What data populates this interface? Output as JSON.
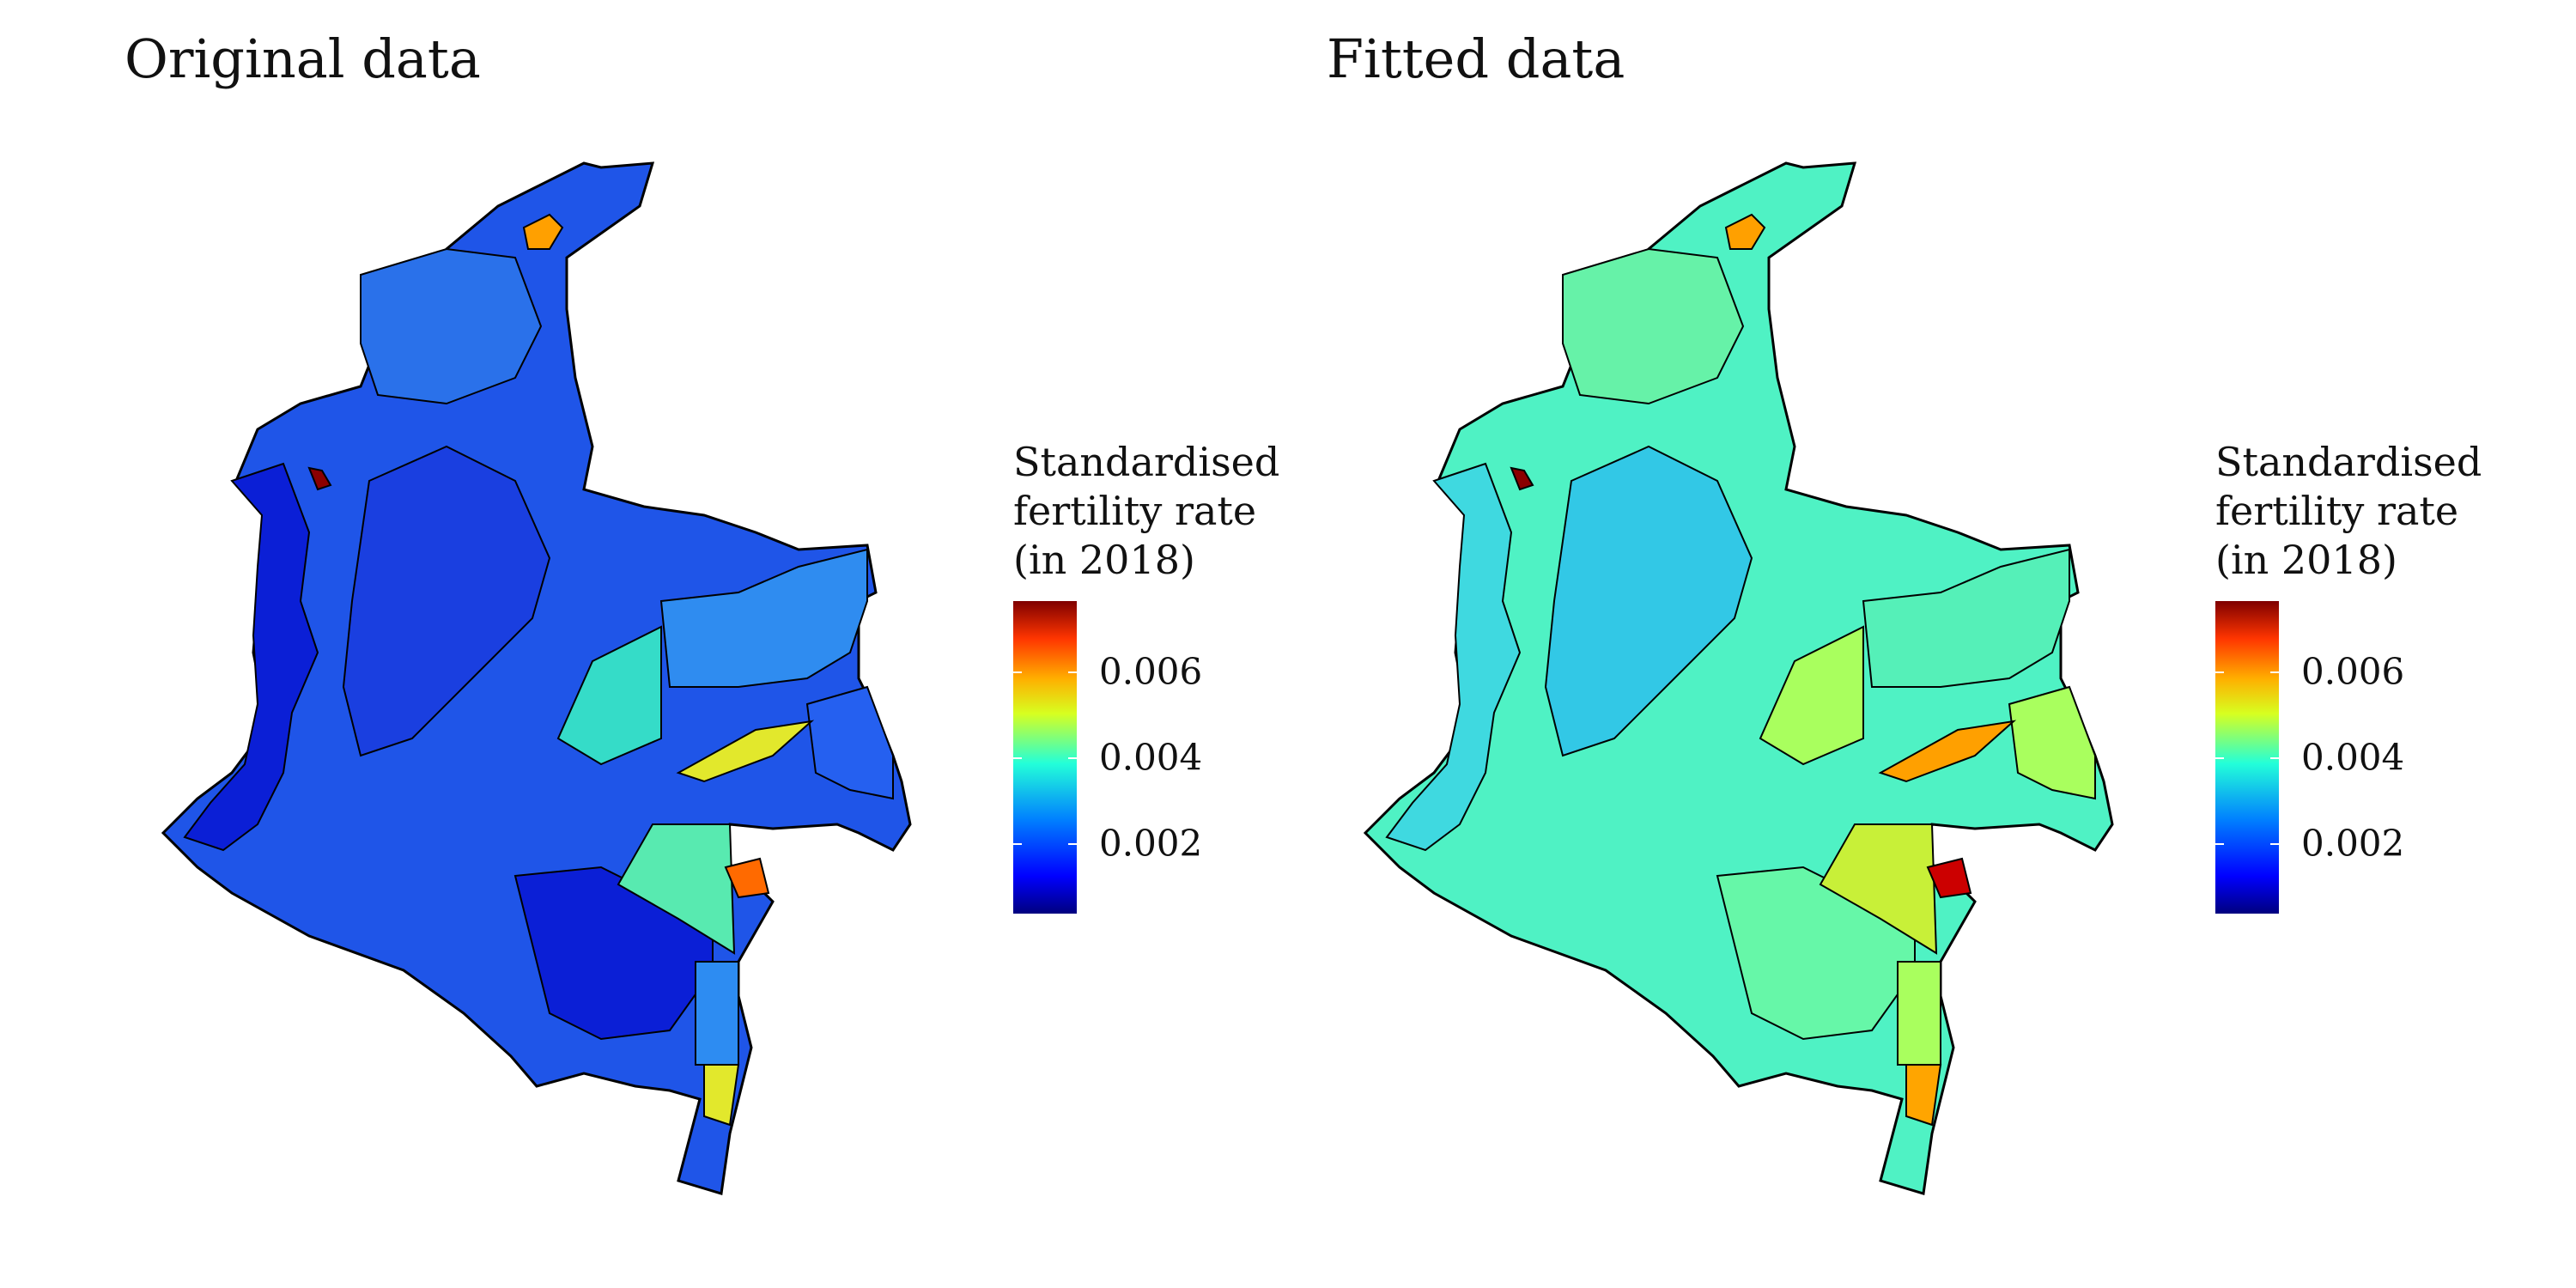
{
  "figure": {
    "panels": [
      {
        "title": "Original data",
        "fill_scheme": "original"
      },
      {
        "title": "Fitted data",
        "fill_scheme": "fitted"
      }
    ],
    "legend": {
      "title_lines": [
        "Standardised",
        "fertility rate",
        "(in 2018)"
      ],
      "ticks": [
        {
          "label": "0.006",
          "value": 0.006
        },
        {
          "label": "0.004",
          "value": 0.004
        },
        {
          "label": "0.002",
          "value": 0.002
        }
      ],
      "range": [
        0.0002,
        0.0078
      ],
      "colormap": [
        "#00007f",
        "#0000ff",
        "#007fff",
        "#23ffd9",
        "#d7ff20",
        "#ffb000",
        "#ff3500",
        "#7f0000"
      ]
    },
    "colors": {
      "original_base": "#1f55e8",
      "original_dark": "#0b1fd6",
      "fitted_base": "#4ff2c4",
      "fitted_light": "#a9ff5e",
      "hotspot_dark_red": "#8b0000",
      "hotspot_red": "#cc0000",
      "hotspot_orange": "#ff8c00",
      "hotspot_yellow": "#e2e82c",
      "border": "#000000"
    },
    "region_values": {
      "original": {
        "north_base": 0.0022,
        "andes": 0.0015,
        "pacific": 0.001,
        "east": 0.002,
        "amazon": 0.0016,
        "small_spot": 0.0075,
        "guajira_spot": 0.0055,
        "east_strip": 0.0047,
        "east_spot": 0.0065,
        "south_tip": 0.0047
      },
      "fitted": {
        "north_base": 0.0039,
        "andes": 0.003,
        "pacific": 0.0036,
        "east": 0.004,
        "amazon": 0.0043,
        "small_spot": 0.0075,
        "guajira_spot": 0.0055,
        "east_strip": 0.0057,
        "east_spot": 0.0072,
        "south_tip": 0.0058
      }
    }
  }
}
